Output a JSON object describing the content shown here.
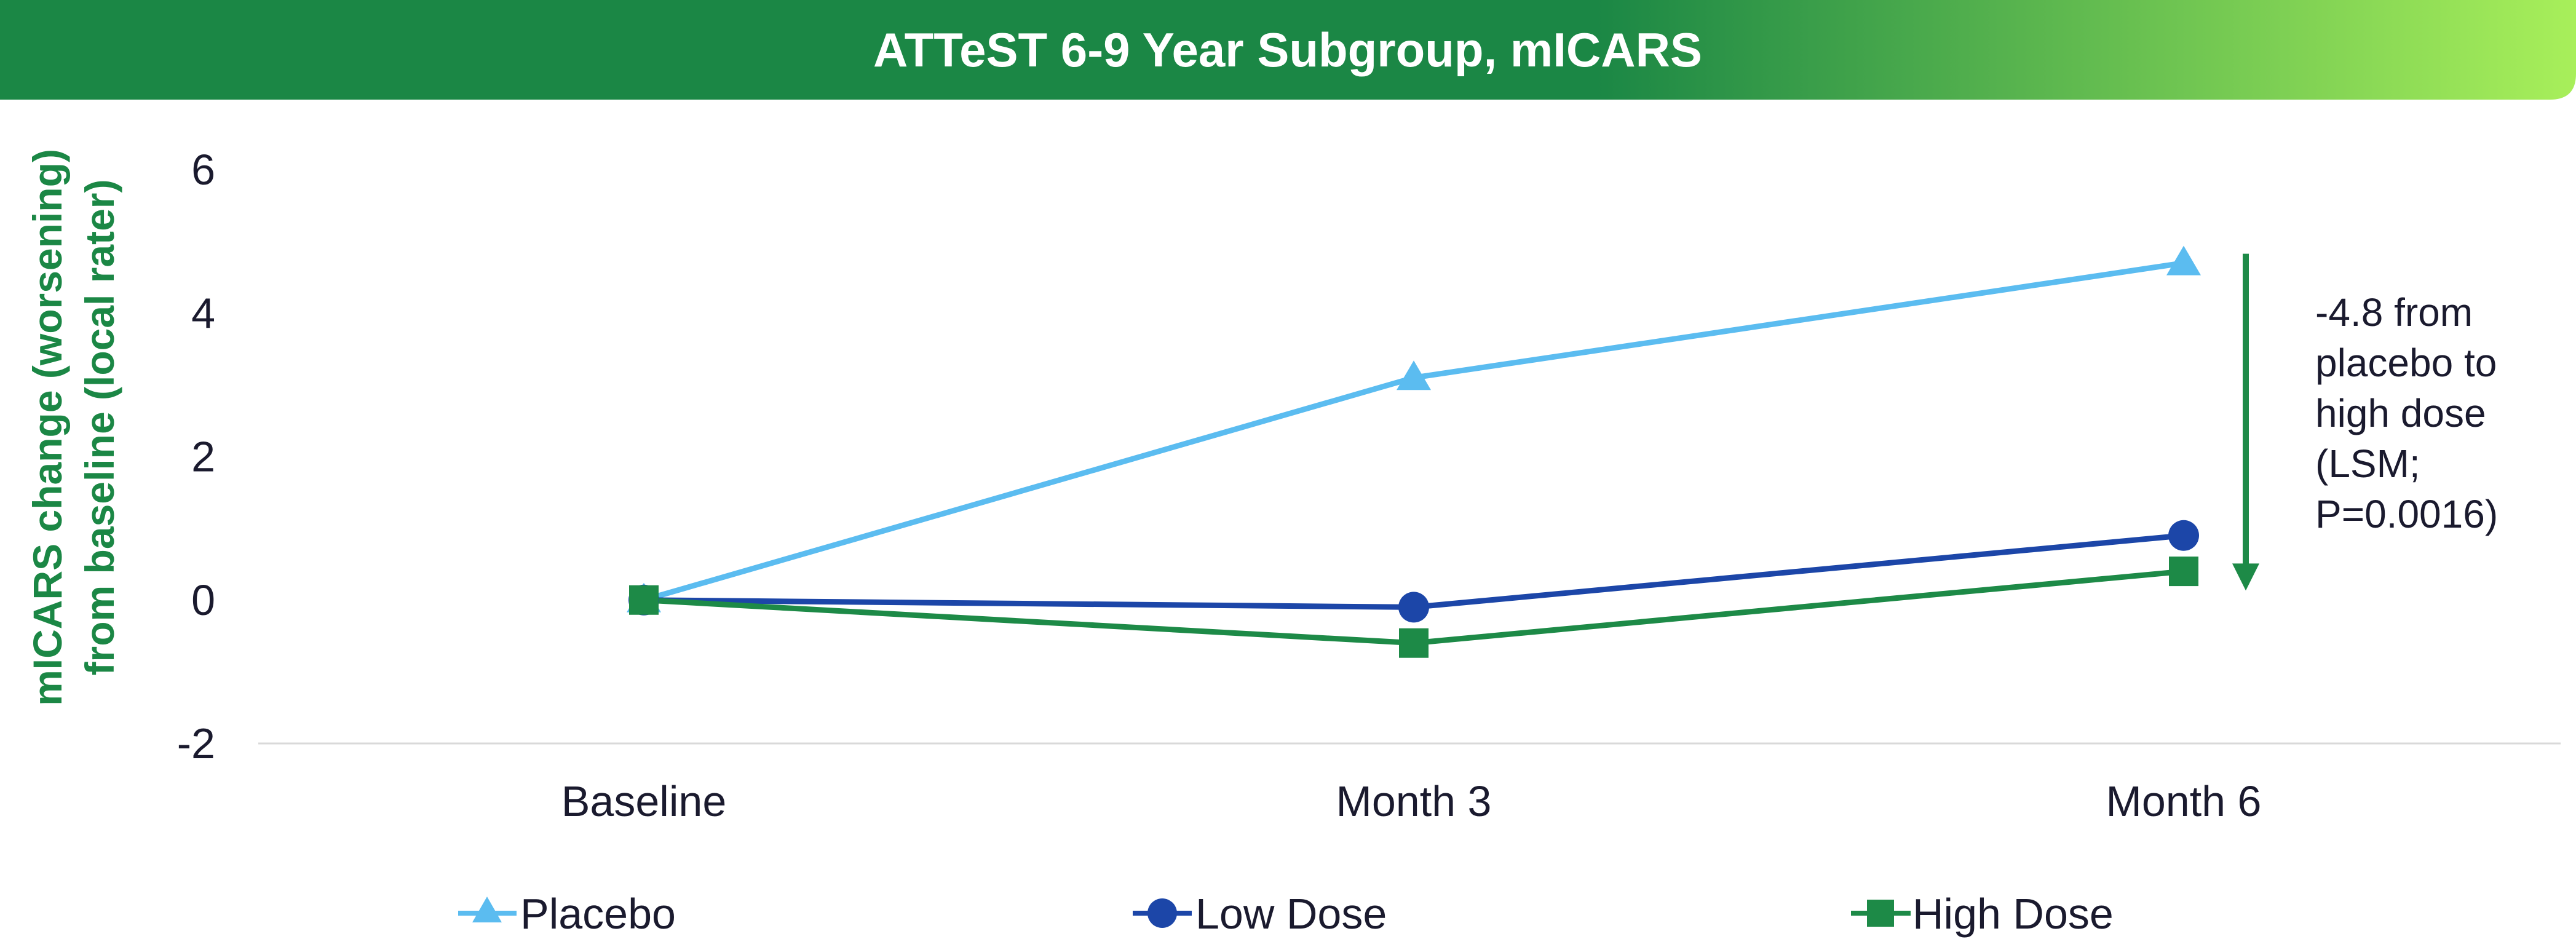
{
  "header": {
    "title": "ATTeST 6-9 Year Subgroup, mICARS"
  },
  "colors": {
    "header_green": "#1b8745",
    "header_lime": "#a8ef5a",
    "placebo": "#5bbcf0",
    "low_dose": "#1c46a8",
    "high_dose": "#1d8a47",
    "arrow": "#1d8a47",
    "axis_label": "#1b8745"
  },
  "chart_data": {
    "type": "line",
    "title": "ATTeST 6-9 Year Subgroup, mICARS",
    "categories": [
      "Baseline",
      "Month 3",
      "Month 6"
    ],
    "xlabel": "",
    "ylabel_lines": [
      "mICARS change (worsening)",
      "from baseline (local rater)"
    ],
    "ylim": [
      -2,
      6
    ],
    "yticks": [
      "6",
      "4",
      "2",
      "0",
      "-2"
    ],
    "ytick_values": [
      6,
      4,
      2,
      0,
      -2
    ],
    "grid": false,
    "legend_position": "bottom",
    "series": [
      {
        "name": "Placebo",
        "marker": "triangle",
        "values": [
          0,
          3.1,
          4.7
        ]
      },
      {
        "name": "Low Dose",
        "marker": "circle",
        "values": [
          0,
          -0.1,
          0.9
        ]
      },
      {
        "name": "High Dose",
        "marker": "square",
        "values": [
          0,
          -0.6,
          0.4
        ]
      }
    ],
    "annotation": {
      "lines": [
        "-4.8 from",
        "placebo to",
        "high dose",
        "(LSM;",
        "P=0.0016)"
      ],
      "arrow_from_value": 4.7,
      "arrow_to_value": 0.2
    }
  }
}
